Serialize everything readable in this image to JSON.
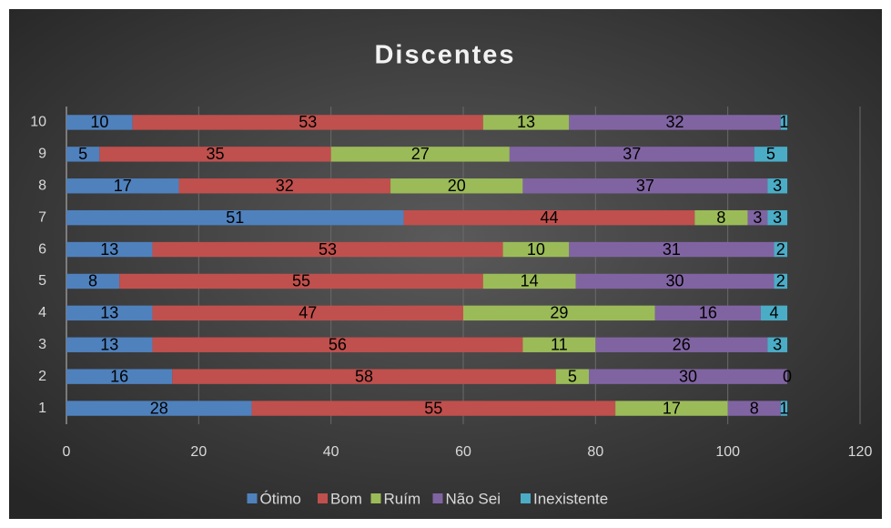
{
  "chart_data": {
    "type": "bar",
    "orientation": "horizontal",
    "stacked": true,
    "title": "Discentes",
    "categories": [
      "1",
      "2",
      "3",
      "4",
      "5",
      "6",
      "7",
      "8",
      "9",
      "10"
    ],
    "series": [
      {
        "name": "Ótimo",
        "color": "#4f81bd",
        "values": [
          28,
          16,
          13,
          13,
          8,
          13,
          51,
          17,
          5,
          10
        ]
      },
      {
        "name": "Bom",
        "color": "#c0504d",
        "values": [
          55,
          58,
          56,
          47,
          55,
          53,
          44,
          32,
          35,
          53
        ]
      },
      {
        "name": "Ruím",
        "color": "#9bbb59",
        "values": [
          17,
          5,
          11,
          29,
          14,
          10,
          8,
          20,
          27,
          13
        ]
      },
      {
        "name": "Não Sei",
        "color": "#8064a2",
        "values": [
          8,
          30,
          26,
          16,
          30,
          31,
          3,
          37,
          37,
          32
        ]
      },
      {
        "name": "Inexistente",
        "color": "#4bacc6",
        "values": [
          1,
          0,
          3,
          4,
          2,
          2,
          3,
          3,
          5,
          1
        ]
      }
    ],
    "xlim": [
      0,
      120
    ],
    "xticks": [
      0,
      20,
      40,
      60,
      80,
      100,
      120
    ],
    "grid": true,
    "legend": "bottom"
  }
}
